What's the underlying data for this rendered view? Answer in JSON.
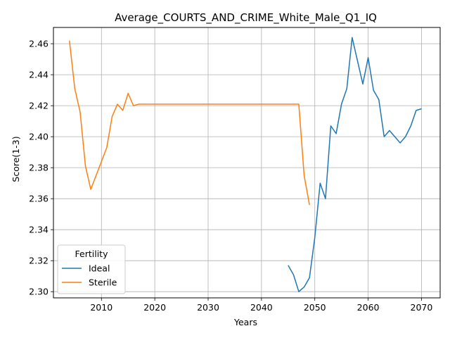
{
  "chart_data": {
    "type": "line",
    "title": "Average_COURTS_AND_CRIME_White_Male_Q1_IQ",
    "xlabel": "Years",
    "ylabel": "Score(1-3)",
    "xlim": [
      2001,
      2073.5
    ],
    "ylim": [
      2.296,
      2.4705
    ],
    "xticks": [
      2010,
      2020,
      2030,
      2040,
      2050,
      2060,
      2070
    ],
    "yticks": [
      2.3,
      2.32,
      2.34,
      2.36,
      2.38,
      2.4,
      2.42,
      2.44,
      2.46
    ],
    "ytick_labels": [
      "2.30",
      "2.32",
      "2.34",
      "2.36",
      "2.38",
      "2.40",
      "2.42",
      "2.44",
      "2.46"
    ],
    "grid": true,
    "legend": {
      "title": "Fertility",
      "placement": "lower-left"
    },
    "series": [
      {
        "name": "Ideal",
        "color": "#1f77b4",
        "x": [
          2045,
          2046,
          2047,
          2048,
          2049,
          2050,
          2051,
          2052,
          2053,
          2054,
          2055,
          2056,
          2057,
          2058,
          2059,
          2060,
          2061,
          2062,
          2063,
          2064,
          2065,
          2066,
          2067,
          2068,
          2069,
          2070
        ],
        "y": [
          2.317,
          2.311,
          2.3,
          2.303,
          2.309,
          2.335,
          2.37,
          2.36,
          2.407,
          2.402,
          2.421,
          2.431,
          2.464,
          2.449,
          2.434,
          2.451,
          2.43,
          2.424,
          2.4,
          2.404,
          2.4,
          2.396,
          2.4,
          2.407,
          2.417,
          2.418
        ]
      },
      {
        "name": "Sterile",
        "color": "#ff7f0e",
        "x": [
          2004,
          2005,
          2006,
          2007,
          2008,
          2009,
          2010,
          2011,
          2012,
          2013,
          2014,
          2015,
          2016,
          2017,
          2018,
          2020,
          2025,
          2030,
          2035,
          2040,
          2045,
          2047,
          2048,
          2049
        ],
        "y": [
          2.462,
          2.431,
          2.416,
          2.381,
          2.366,
          2.375,
          2.384,
          2.393,
          2.413,
          2.421,
          2.417,
          2.428,
          2.42,
          2.421,
          2.421,
          2.421,
          2.421,
          2.421,
          2.421,
          2.421,
          2.421,
          2.421,
          2.375,
          2.356
        ]
      }
    ]
  }
}
